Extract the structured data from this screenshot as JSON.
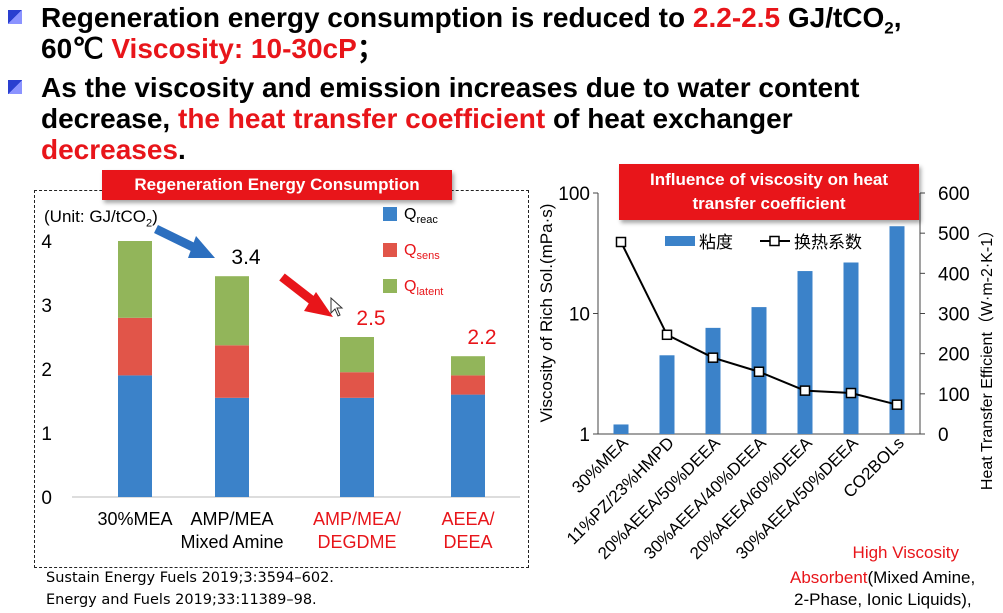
{
  "bullets": [
    {
      "line1": {
        "a": "Regeneration energy consumption is reduced to ",
        "b": "2.2-2.5",
        "c": " GJ/tCO",
        "sub": "2",
        "d": ","
      },
      "line2": {
        "a": "60℃ ",
        "b": "Viscosity: 10-30cP",
        "c": "；"
      }
    },
    {
      "line1": "As the viscosity and emission increases due to water content",
      "line2": {
        "a": "decrease, ",
        "b": "the heat transfer coefficient",
        "c": " of heat exchanger"
      },
      "line3": {
        "a": "decreases",
        "b": "."
      }
    }
  ],
  "left_panel": {
    "banner": "Regeneration Energy Consumption",
    "unit": {
      "text": "(Unit: GJ/tCO",
      "sub": "2",
      "close": ")"
    },
    "refs": [
      "Sustain Energy Fuels 2019;3:3594–602.",
      "Energy and Fuels 2019;33:11389–98."
    ]
  },
  "right_panel": {
    "banner_line1": "Influence of viscosity on heat",
    "banner_line2": "transfer coefficient",
    "note_line1": "High Viscosity",
    "note_line2_red": "Absorbent",
    "note_line2_rest": "(Mixed Amine,",
    "note_line3": "2-Phase, Ionic Liquids),"
  },
  "chart_data": [
    {
      "type": "bar",
      "stacked": true,
      "title": "Regeneration Energy Consumption",
      "categories": [
        {
          "line1": "30%MEA",
          "line2": "",
          "color": "#000000"
        },
        {
          "line1": "AMP/MEA",
          "line2": "Mixed Amine",
          "color": "#000000"
        },
        {
          "line1": "AMP/MEA/",
          "line2": "DEGDME",
          "color": "#e8151a"
        },
        {
          "line1": "AEEA/",
          "line2": "DEEA",
          "color": "#e8151a"
        }
      ],
      "series": [
        {
          "name": "Q",
          "sub": "reac",
          "label_color": "#000000",
          "color": "#3b82c9",
          "values": [
            1.9,
            1.55,
            1.55,
            1.6
          ]
        },
        {
          "name": "Q",
          "sub": "sens",
          "label_color": "#e8151a",
          "color": "#e15549",
          "values": [
            0.9,
            0.82,
            0.4,
            0.3
          ]
        },
        {
          "name": "Q",
          "sub": "latent",
          "label_color": "#e8151a",
          "color": "#92b55a",
          "values": [
            1.2,
            1.08,
            0.55,
            0.3
          ]
        }
      ],
      "total_labels": [
        "",
        "3.4",
        "2.5",
        "2.2"
      ],
      "total_label_colors": [
        "#000000",
        "#000000",
        "#e8151a",
        "#e8151a"
      ],
      "yticks": [
        "0",
        "1",
        "2",
        "3",
        "4"
      ],
      "ylim": [
        0,
        4
      ]
    },
    {
      "type": "bar+line",
      "categories": [
        "30%MEA",
        "11%PZ/23%HMPD",
        "20%AEEA/50%DEEA",
        "30%AEEA/40%DEEA",
        "20%AEEA/60%DEEA",
        "30%AEEA/50%DEEA",
        "CO2BOLs"
      ],
      "series": [
        {
          "name": "粘度",
          "type": "bar",
          "axis": "left",
          "color": "#3b82c9",
          "values": [
            1.2,
            4.5,
            7.6,
            11.3,
            22.5,
            26.5,
            53
          ]
        },
        {
          "name": "换热系数",
          "type": "line",
          "axis": "right",
          "color": "#000000",
          "values": [
            478,
            247,
            190,
            155,
            108,
            102,
            73
          ]
        }
      ],
      "ylabel_left": "Viscosity of Rich Sol.(mPa·s)",
      "ylabel_right": "Heat Transfer Efficient（W·m-2·K-1）",
      "ylim_left": [
        1,
        100
      ],
      "yscale_left": "log",
      "yticks_left": [
        "1",
        "10",
        "100"
      ],
      "ylim_right": [
        0,
        600
      ],
      "yticks_right": [
        "0",
        "100",
        "200",
        "300",
        "400",
        "500",
        "600"
      ],
      "legend_position": "top"
    }
  ],
  "colors": {
    "accent_red": "#e8151a",
    "bar_blue": "#3b82c9",
    "bullet_blue": "#2a3fd0"
  }
}
